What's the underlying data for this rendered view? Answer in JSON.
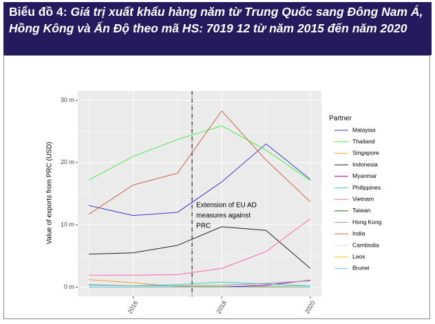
{
  "chart_data": {
    "type": "line",
    "title_label": "Biểu đồ 4:",
    "title": "Giá trị xuất khẩu hàng năm từ Trung Quốc sang Đông Nam Á, Hồng Kông và Ấn Độ theo mã HS: 7019 12 từ năm 2015 đến năm 2020",
    "y_label": "Value of exports from PRC (USD)",
    "legend_title": "Partner",
    "legend_position": "right",
    "x": [
      2015,
      2016,
      2017,
      2018,
      2019,
      2020
    ],
    "xlim": [
      2014.75,
      2020.25
    ],
    "xticks": [
      2016,
      2018,
      2020
    ],
    "xminor": [
      2015,
      2017,
      2019
    ],
    "ylim": [
      -1.5,
      31.5
    ],
    "yticks": [
      {
        "value": 0,
        "label": "0 m"
      },
      {
        "value": 10,
        "label": "10 m"
      },
      {
        "value": 20,
        "label": "20 m"
      },
      {
        "value": 30,
        "label": "30 m"
      }
    ],
    "yminor": [
      5,
      15,
      25
    ],
    "grid": true,
    "vline": {
      "x": 2017.33,
      "label_lines": [
        "Extension of EU AD",
        "measures against",
        "PRC"
      ]
    },
    "series": [
      {
        "name": "Malaysia",
        "color": "#3a3acc",
        "values": [
          13.1,
          11.5,
          12.0,
          16.9,
          23.0,
          17.3
        ]
      },
      {
        "name": "Thailand",
        "color": "#44ee44",
        "values": [
          17.2,
          21.0,
          23.7,
          25.9,
          22.0,
          17.1
        ]
      },
      {
        "name": "Singapore",
        "color": "#f0a030",
        "values": [
          1.2,
          0.7,
          0.1,
          0.1,
          0.1,
          0.2
        ]
      },
      {
        "name": "Indonesia",
        "color": "#222222",
        "values": [
          5.3,
          5.5,
          6.7,
          9.7,
          9.1,
          3.0
        ]
      },
      {
        "name": "Myanmar",
        "color": "#9900aa",
        "values": [
          0.0,
          0.0,
          0.0,
          0.0,
          0.3,
          1.1
        ]
      },
      {
        "name": "Philippines",
        "color": "#33cccc",
        "values": [
          0.3,
          0.2,
          0.4,
          0.8,
          0.5,
          0.2
        ]
      },
      {
        "name": "Vietnam",
        "color": "#ff66aa",
        "values": [
          1.9,
          1.9,
          2.0,
          3.0,
          5.7,
          11.0
        ]
      },
      {
        "name": "Taiwan",
        "color": "#117711",
        "values": [
          0.0,
          0.0,
          0.0,
          0.0,
          0.0,
          0.0
        ]
      },
      {
        "name": "Hong Kong",
        "color": "#999999",
        "values": [
          0.4,
          0.2,
          0.2,
          0.3,
          0.6,
          1.0
        ]
      },
      {
        "name": "India",
        "color": "#cc6644",
        "values": [
          11.7,
          16.4,
          18.3,
          28.3,
          20.4,
          13.7
        ]
      },
      {
        "name": "Cambodia",
        "color": "#ddddbb",
        "values": [
          0.0,
          0.0,
          0.0,
          0.0,
          0.0,
          0.0
        ]
      },
      {
        "name": "Laos",
        "color": "#eecc22",
        "values": [
          0.0,
          0.0,
          0.0,
          0.0,
          0.0,
          0.0
        ]
      },
      {
        "name": "Brunei",
        "color": "#66ccdd",
        "values": [
          0.0,
          0.0,
          0.0,
          0.0,
          0.0,
          0.0
        ]
      }
    ]
  }
}
